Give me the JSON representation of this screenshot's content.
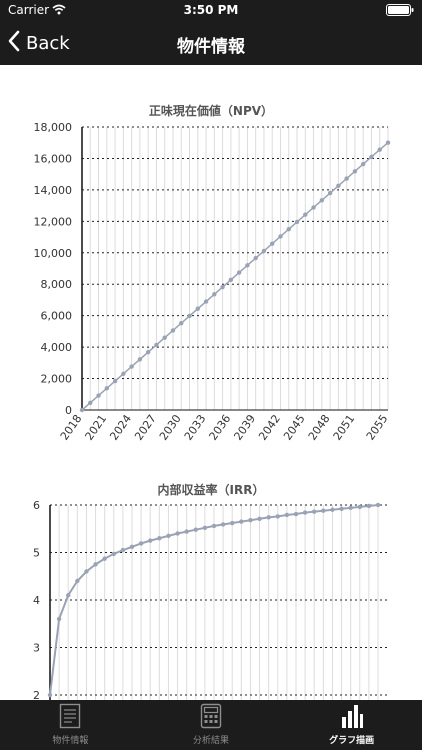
{
  "status_bar": {
    "carrier": "Carrier",
    "time": "3:50 PM"
  },
  "nav": {
    "back_label": "Back",
    "title": "物件情報"
  },
  "tabs": [
    {
      "label": "物件情報",
      "icon": "document-icon",
      "active": false
    },
    {
      "label": "分析結果",
      "icon": "calculator-icon",
      "active": false
    },
    {
      "label": "グラフ描画",
      "icon": "bar-chart-icon",
      "active": true
    }
  ],
  "chart_data": [
    {
      "type": "line",
      "title": "正味現在価値（NPV）",
      "x_start": 2018,
      "x_end": 2055,
      "x_ticks": [
        "2018",
        "2021",
        "2024",
        "2027",
        "2030",
        "2033",
        "2036",
        "2039",
        "2042",
        "2045",
        "2048",
        "2051",
        "2055"
      ],
      "y_ticks": [
        "0",
        "2,000",
        "4,000",
        "6,000",
        "8,000",
        "10,000",
        "12,000",
        "14,000",
        "16,000",
        "18,000"
      ],
      "ylim": [
        0,
        18000
      ],
      "grid": true,
      "color": "#9aa3b5",
      "points": [
        [
          2018,
          0
        ],
        [
          2019,
          460
        ],
        [
          2020,
          920
        ],
        [
          2021,
          1380
        ],
        [
          2022,
          1840
        ],
        [
          2023,
          2300
        ],
        [
          2024,
          2760
        ],
        [
          2025,
          3220
        ],
        [
          2026,
          3680
        ],
        [
          2027,
          4140
        ],
        [
          2028,
          4600
        ],
        [
          2029,
          5060
        ],
        [
          2030,
          5520
        ],
        [
          2031,
          5980
        ],
        [
          2032,
          6440
        ],
        [
          2033,
          6900
        ],
        [
          2034,
          7360
        ],
        [
          2035,
          7820
        ],
        [
          2036,
          8280
        ],
        [
          2037,
          8740
        ],
        [
          2038,
          9200
        ],
        [
          2039,
          9660
        ],
        [
          2040,
          10120
        ],
        [
          2041,
          10580
        ],
        [
          2042,
          11040
        ],
        [
          2043,
          11500
        ],
        [
          2044,
          11960
        ],
        [
          2045,
          12420
        ],
        [
          2046,
          12880
        ],
        [
          2047,
          13340
        ],
        [
          2048,
          13800
        ],
        [
          2049,
          14260
        ],
        [
          2050,
          14720
        ],
        [
          2051,
          15180
        ],
        [
          2052,
          15640
        ],
        [
          2053,
          16100
        ],
        [
          2054,
          16560
        ],
        [
          2055,
          17000
        ]
      ]
    },
    {
      "type": "line",
      "title": "内部収益率（IRR）",
      "y_ticks": [
        "2",
        "3",
        "4",
        "5",
        "6"
      ],
      "ylim": [
        2,
        6
      ],
      "grid": true,
      "color": "#9aa3b5",
      "points": [
        [
          2018,
          2.0
        ],
        [
          2019,
          3.6
        ],
        [
          2020,
          4.1
        ],
        [
          2021,
          4.4
        ],
        [
          2022,
          4.6
        ],
        [
          2023,
          4.75
        ],
        [
          2024,
          4.87
        ],
        [
          2025,
          4.97
        ],
        [
          2026,
          5.05
        ],
        [
          2027,
          5.12
        ],
        [
          2028,
          5.19
        ],
        [
          2029,
          5.25
        ],
        [
          2030,
          5.3
        ],
        [
          2031,
          5.35
        ],
        [
          2032,
          5.4
        ],
        [
          2033,
          5.44
        ],
        [
          2034,
          5.48
        ],
        [
          2035,
          5.52
        ],
        [
          2036,
          5.56
        ],
        [
          2037,
          5.59
        ],
        [
          2038,
          5.62
        ],
        [
          2039,
          5.65
        ],
        [
          2040,
          5.68
        ],
        [
          2041,
          5.71
        ],
        [
          2042,
          5.74
        ],
        [
          2043,
          5.76
        ],
        [
          2044,
          5.79
        ],
        [
          2045,
          5.81
        ],
        [
          2046,
          5.84
        ],
        [
          2047,
          5.86
        ],
        [
          2048,
          5.88
        ],
        [
          2049,
          5.9
        ],
        [
          2050,
          5.92
        ],
        [
          2051,
          5.94
        ],
        [
          2052,
          5.96
        ],
        [
          2053,
          5.98
        ],
        [
          2054,
          6.0
        ]
      ]
    }
  ]
}
